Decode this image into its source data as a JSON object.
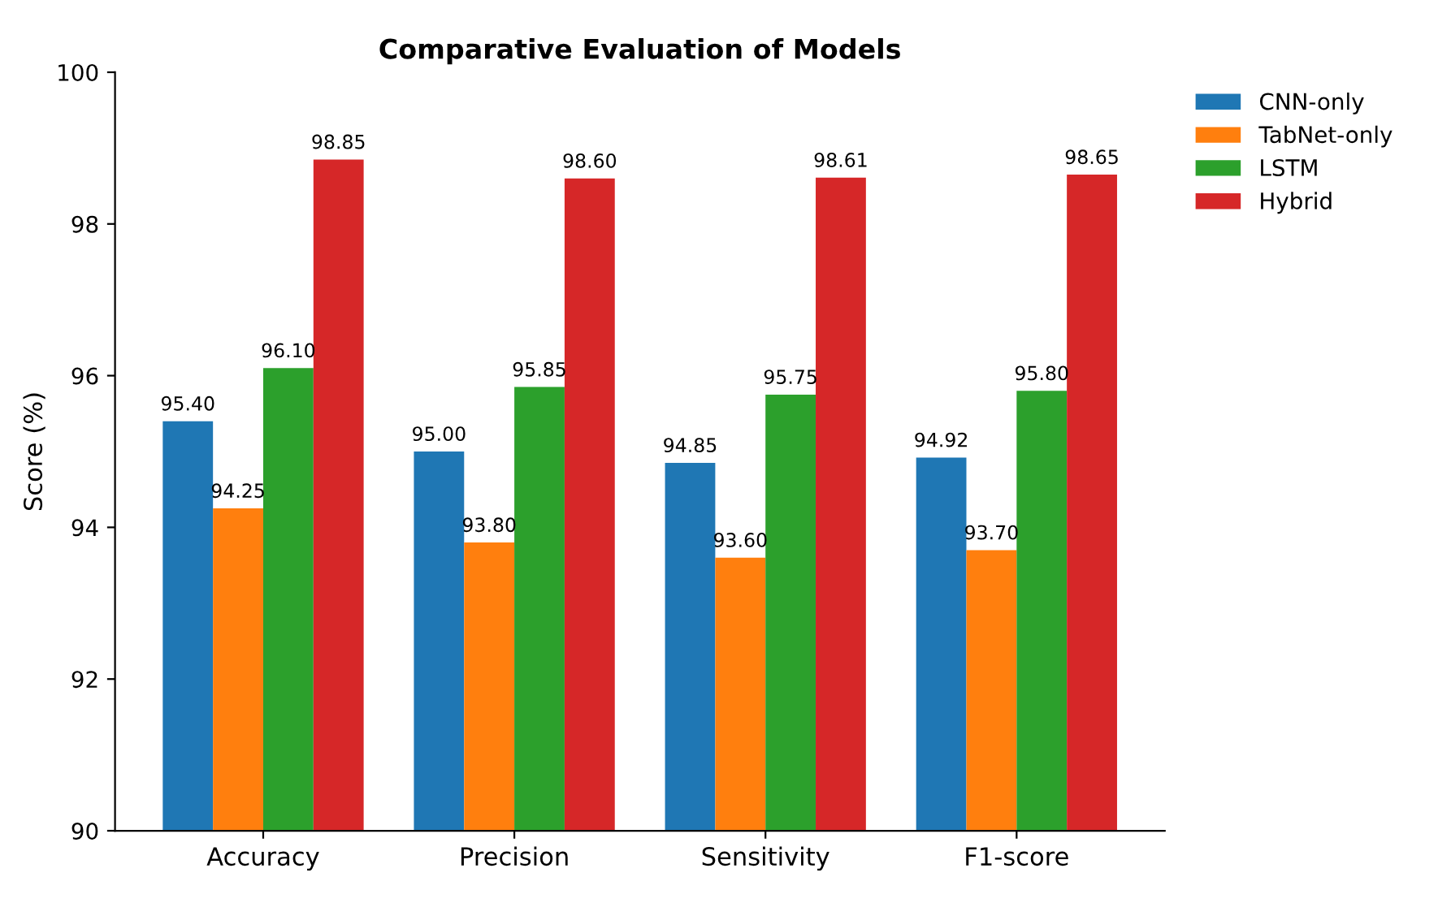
{
  "chart_data": {
    "type": "bar",
    "title": "Comparative Evaluation of Models",
    "ylabel": "Score (%)",
    "categories": [
      "Accuracy",
      "Precision",
      "Sensitivity",
      "F1-score"
    ],
    "series": [
      {
        "name": "CNN-only",
        "color": "#1f77b4",
        "values": [
          95.4,
          95.0,
          94.85,
          94.92
        ],
        "value_labels": [
          "95.40",
          "95.00",
          "94.85",
          "94.92"
        ]
      },
      {
        "name": "TabNet-only",
        "color": "#ff7f0e",
        "values": [
          94.25,
          93.8,
          93.6,
          93.7
        ],
        "value_labels": [
          "94.25",
          "93.80",
          "93.60",
          "93.70"
        ]
      },
      {
        "name": "LSTM",
        "color": "#2ca02c",
        "values": [
          96.1,
          95.85,
          95.75,
          95.8
        ],
        "value_labels": [
          "96.10",
          "95.85",
          "95.75",
          "95.80"
        ]
      },
      {
        "name": "Hybrid",
        "color": "#d62728",
        "values": [
          98.85,
          98.6,
          98.61,
          98.65
        ],
        "value_labels": [
          "98.85",
          "98.60",
          "98.61",
          "98.65"
        ]
      }
    ],
    "ylim": [
      90,
      100
    ],
    "yticks": [
      90,
      92,
      94,
      96,
      98,
      100
    ],
    "grid": false,
    "legend": "top right"
  }
}
